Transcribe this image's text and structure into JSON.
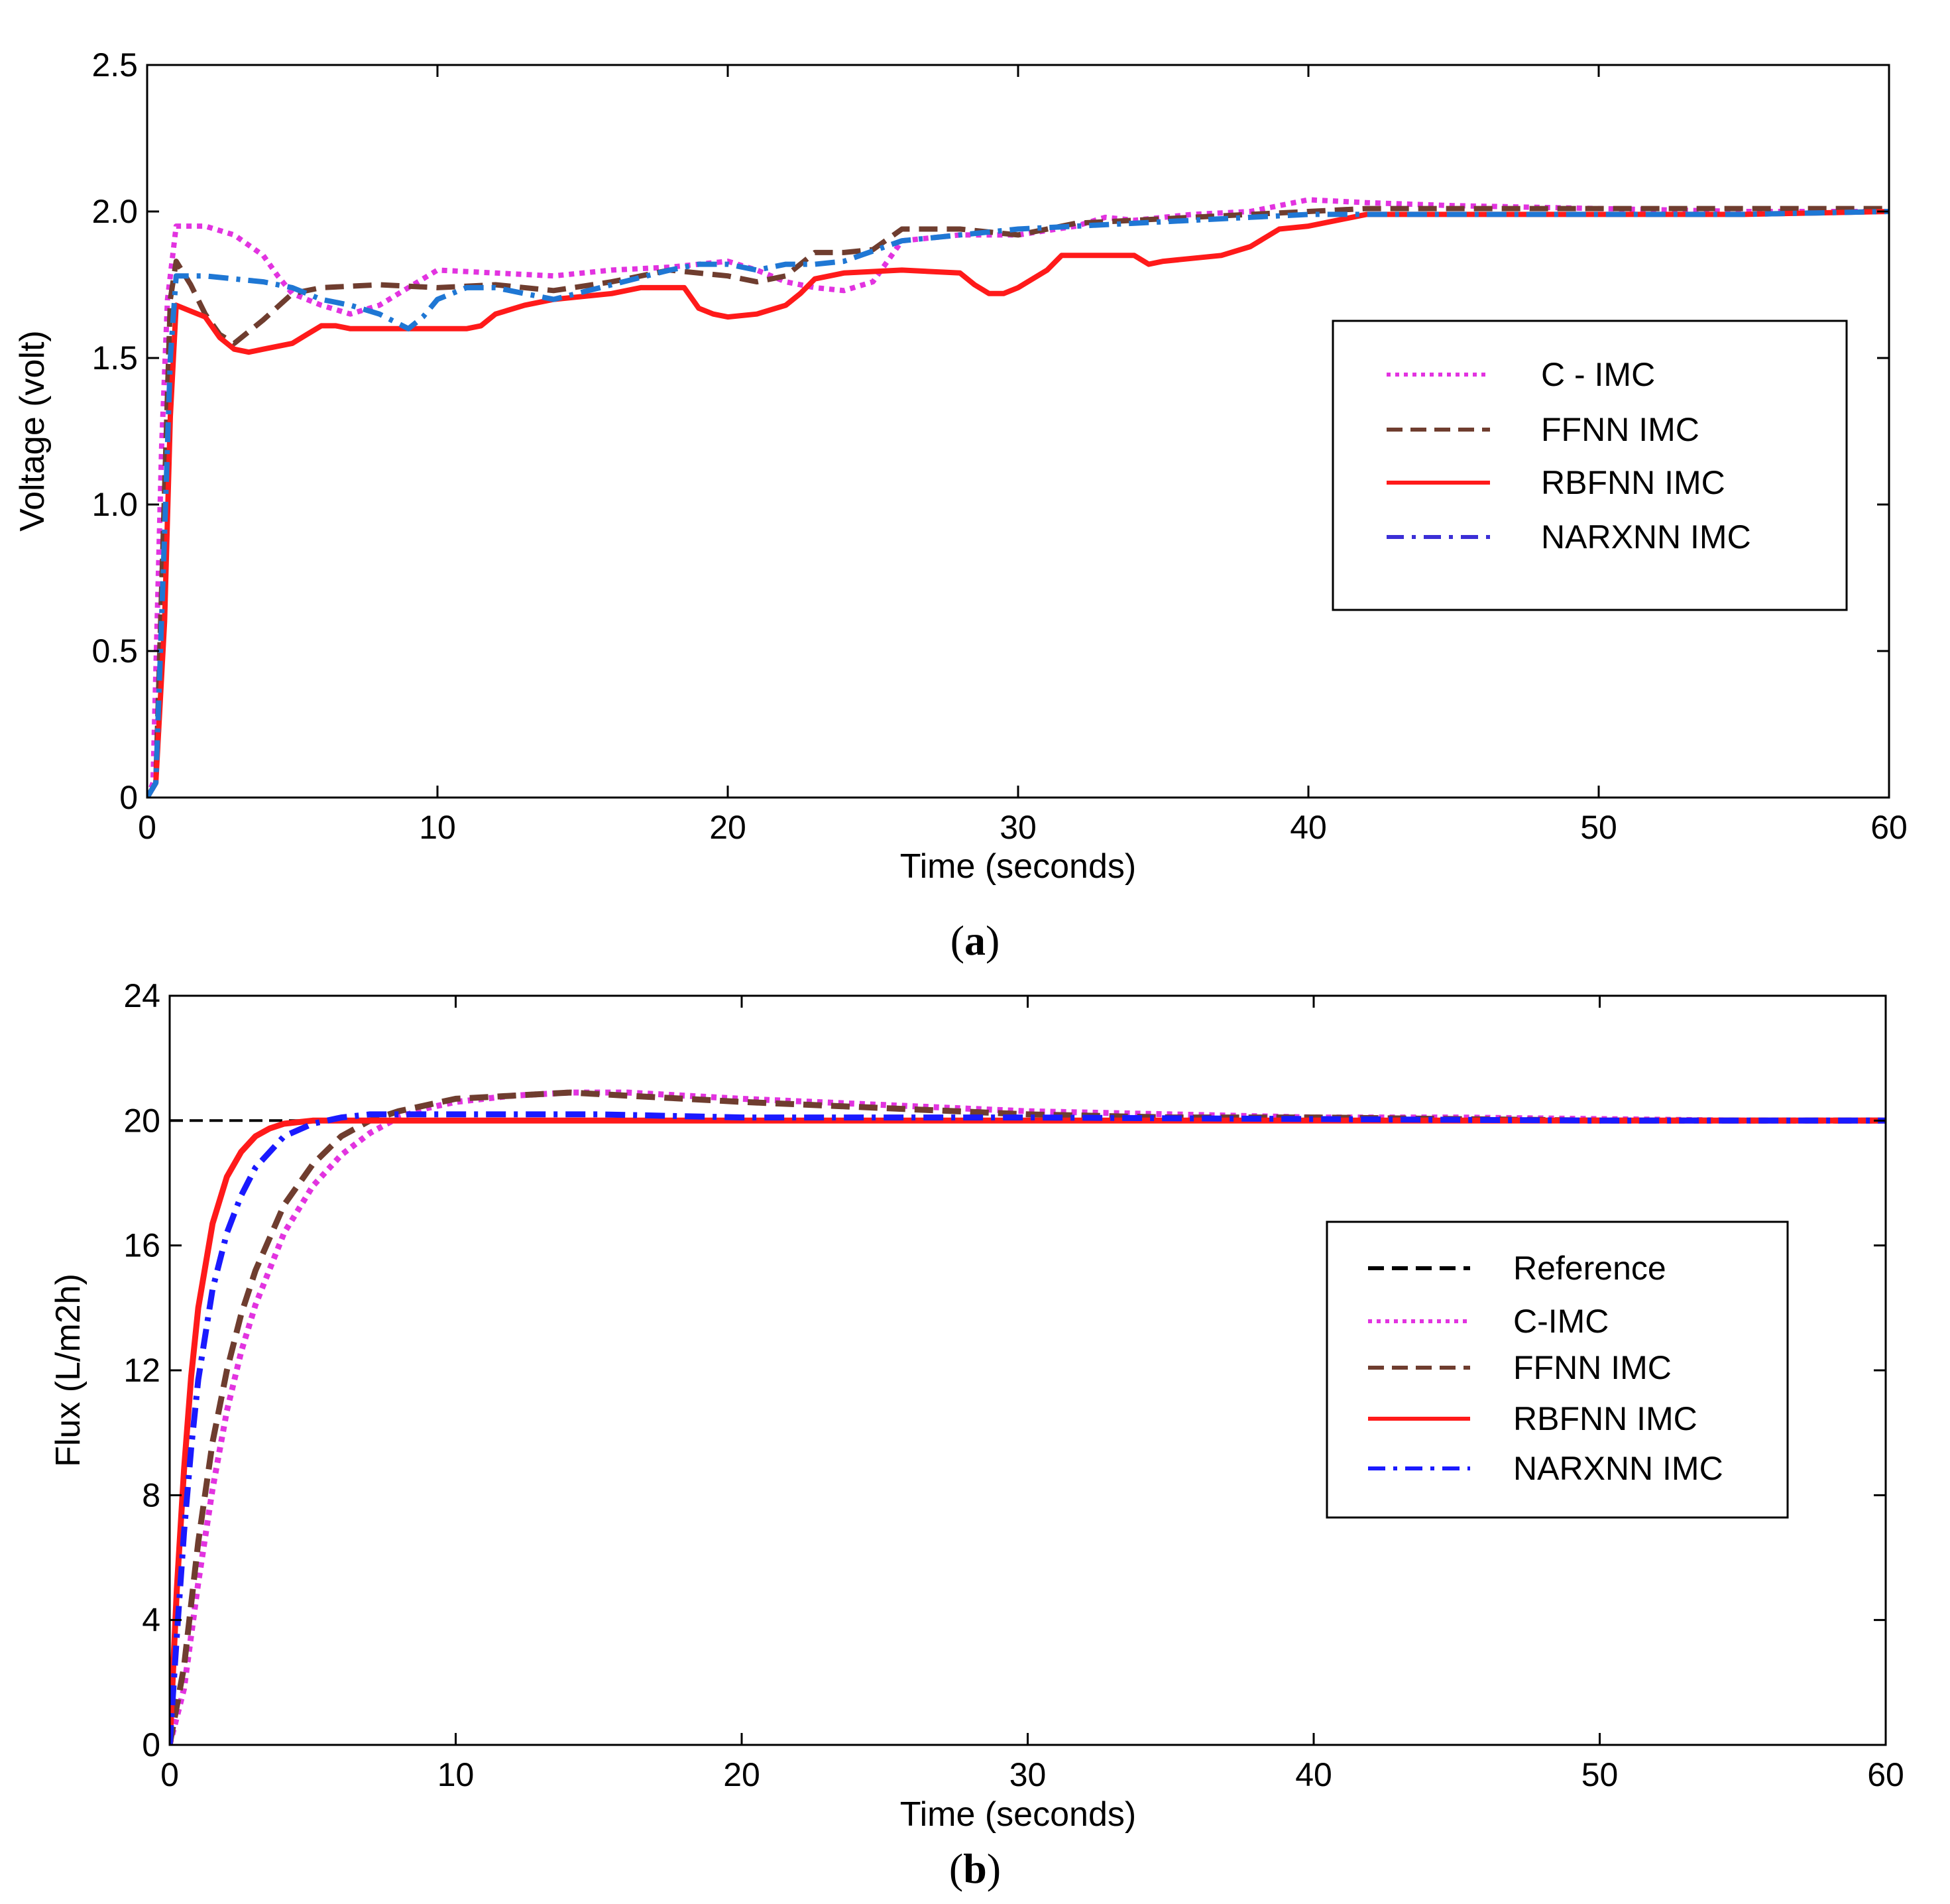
{
  "chart_data": [
    {
      "type": "line",
      "panel": "a",
      "caption_open": "(",
      "caption_letter": "a",
      "caption_close": ")",
      "xlabel": "Time (seconds)",
      "ylabel": "Voltage (volt)",
      "xlim": [
        0,
        60
      ],
      "ylim": [
        0,
        2.5
      ],
      "xticks": [
        0,
        10,
        20,
        30,
        40,
        50,
        60
      ],
      "xtick_labels": [
        "0",
        "10",
        "20",
        "30",
        "40",
        "50",
        "60"
      ],
      "yticks": [
        0,
        0.5,
        1.0,
        1.5,
        2.0,
        2.5
      ],
      "ytick_labels": [
        "0",
        "0.5",
        "1.0",
        "1.5",
        "2.0",
        "2.5"
      ],
      "grid": false,
      "legend_position": "right",
      "series": [
        {
          "name": "C - IMC",
          "color": "#e233e0",
          "style": "dotted",
          "x": [
            0,
            0.2,
            0.5,
            0.7,
            1.0,
            1.5,
            2.0,
            3.0,
            4.0,
            4.5,
            5.0,
            6.0,
            7.0,
            8.0,
            9.0,
            10.0,
            12.0,
            14.0,
            16.0,
            18.0,
            20.0,
            21.0,
            22.0,
            23.0,
            24.0,
            25.0,
            26.0,
            28.0,
            30.0,
            32.0,
            33.0,
            34.0,
            36.0,
            38.0,
            40.0,
            42.0,
            45.0,
            50.0,
            55.0,
            60.0
          ],
          "y": [
            0,
            0.05,
            1.2,
            1.7,
            1.95,
            1.95,
            1.95,
            1.92,
            1.85,
            1.78,
            1.72,
            1.68,
            1.65,
            1.68,
            1.74,
            1.8,
            1.79,
            1.78,
            1.8,
            1.81,
            1.83,
            1.8,
            1.76,
            1.74,
            1.73,
            1.76,
            1.9,
            1.92,
            1.92,
            1.95,
            1.98,
            1.97,
            1.99,
            2.0,
            2.04,
            2.03,
            2.02,
            2.01,
            2.0,
            2.0
          ]
        },
        {
          "name": "FFNN IMC",
          "color": "#6f3d2f",
          "style": "dashed",
          "x": [
            0,
            0.3,
            0.6,
            0.8,
            1.0,
            1.5,
            2.0,
            2.5,
            3.0,
            4.0,
            5.0,
            6.0,
            8.0,
            10.0,
            12.0,
            14.0,
            16.0,
            18.0,
            20.0,
            21.0,
            22.0,
            23.0,
            24.0,
            25.0,
            26.0,
            28.0,
            30.0,
            32.0,
            34.0,
            36.0,
            38.0,
            40.0,
            42.0,
            45.0,
            50.0,
            55.0,
            60.0
          ],
          "y": [
            0,
            0.05,
            1.05,
            1.7,
            1.83,
            1.75,
            1.65,
            1.58,
            1.55,
            1.63,
            1.72,
            1.74,
            1.75,
            1.74,
            1.75,
            1.73,
            1.76,
            1.8,
            1.78,
            1.76,
            1.78,
            1.86,
            1.86,
            1.87,
            1.94,
            1.94,
            1.92,
            1.96,
            1.97,
            1.98,
            1.99,
            2.0,
            2.01,
            2.01,
            2.01,
            2.01,
            2.01
          ]
        },
        {
          "name": "RBFNN IMC",
          "color": "#ff1a1a",
          "style": "solid",
          "x": [
            0,
            0.3,
            0.6,
            0.8,
            1.0,
            1.5,
            2.0,
            2.5,
            3.0,
            3.5,
            4.0,
            5.0,
            5.5,
            6.0,
            6.5,
            7.0,
            8.0,
            9.0,
            10.0,
            11.0,
            11.5,
            12.0,
            13.0,
            14.0,
            16.0,
            17.0,
            18.0,
            18.5,
            19.0,
            19.5,
            20.0,
            21.0,
            22.0,
            22.5,
            23.0,
            24.0,
            26.0,
            28.0,
            28.5,
            29.0,
            29.5,
            30.0,
            31.0,
            31.5,
            32.0,
            33.0,
            34.0,
            34.5,
            35.0,
            36.0,
            37.0,
            38.0,
            39.0,
            40.0,
            42.0,
            45.0,
            50.0,
            55.0,
            60.0
          ],
          "y": [
            0,
            0.05,
            0.6,
            1.3,
            1.68,
            1.66,
            1.64,
            1.57,
            1.53,
            1.52,
            1.53,
            1.55,
            1.58,
            1.61,
            1.61,
            1.6,
            1.6,
            1.6,
            1.6,
            1.6,
            1.61,
            1.65,
            1.68,
            1.7,
            1.72,
            1.74,
            1.74,
            1.74,
            1.67,
            1.65,
            1.64,
            1.65,
            1.68,
            1.72,
            1.77,
            1.79,
            1.8,
            1.79,
            1.75,
            1.72,
            1.72,
            1.74,
            1.8,
            1.85,
            1.85,
            1.85,
            1.85,
            1.82,
            1.83,
            1.84,
            1.85,
            1.88,
            1.94,
            1.95,
            1.99,
            1.99,
            1.99,
            1.99,
            2.0
          ]
        },
        {
          "name": "NARXNN IMC",
          "color": "#1f77d4",
          "legend_color": "#3b2fd6",
          "style": "dashdot",
          "x": [
            0,
            0.3,
            0.6,
            0.8,
            1.0,
            2.0,
            3.0,
            4.0,
            5.0,
            6.0,
            7.0,
            8.0,
            9.0,
            9.5,
            10.0,
            11.0,
            12.0,
            13.0,
            14.0,
            16.0,
            18.0,
            19.0,
            20.0,
            21.0,
            22.0,
            23.0,
            24.0,
            26.0,
            28.0,
            30.0,
            32.0,
            34.0,
            36.0,
            38.0,
            40.0,
            45.0,
            50.0,
            55.0,
            60.0
          ],
          "y": [
            0,
            0.05,
            0.9,
            1.5,
            1.78,
            1.78,
            1.77,
            1.76,
            1.74,
            1.7,
            1.68,
            1.65,
            1.6,
            1.64,
            1.7,
            1.74,
            1.74,
            1.72,
            1.7,
            1.75,
            1.8,
            1.82,
            1.82,
            1.8,
            1.82,
            1.82,
            1.83,
            1.9,
            1.92,
            1.94,
            1.95,
            1.96,
            1.97,
            1.98,
            1.99,
            1.99,
            1.99,
            1.99,
            2.0
          ]
        }
      ]
    },
    {
      "type": "line",
      "panel": "b",
      "caption_open": "(",
      "caption_letter": "b",
      "caption_close": ")",
      "xlabel": "Time (seconds)",
      "ylabel": "Flux (L/m2h)",
      "xlim": [
        0,
        60
      ],
      "ylim": [
        0,
        24
      ],
      "xticks": [
        0,
        10,
        20,
        30,
        40,
        50,
        60
      ],
      "xtick_labels": [
        "0",
        "10",
        "20",
        "30",
        "40",
        "50",
        "60"
      ],
      "yticks": [
        0,
        4,
        8,
        12,
        16,
        20,
        24
      ],
      "ytick_labels": [
        "0",
        "4",
        "8",
        "12",
        "16",
        "20",
        "24"
      ],
      "grid": false,
      "legend_position": "right",
      "series": [
        {
          "name": "Reference",
          "color": "#000000",
          "style": "dashed",
          "x": [
            0,
            60
          ],
          "y": [
            20,
            20
          ]
        },
        {
          "name": "C-IMC",
          "color": "#e233e0",
          "style": "dotted",
          "x": [
            0,
            0.5,
            1.0,
            1.5,
            2.0,
            2.5,
            3.0,
            4.0,
            5.0,
            6.0,
            7.0,
            8.0,
            9.0,
            10.0,
            12.0,
            14.0,
            16.0,
            18.0,
            20.0,
            25.0,
            30.0,
            35.0,
            40.0,
            45.0,
            50.0,
            55.0,
            60.0
          ],
          "y": [
            0,
            1.8,
            5.2,
            8.2,
            10.7,
            12.6,
            14.1,
            16.4,
            17.9,
            18.9,
            19.6,
            20.1,
            20.4,
            20.6,
            20.8,
            20.9,
            20.9,
            20.8,
            20.7,
            20.5,
            20.3,
            20.2,
            20.1,
            20.1,
            20.05,
            20.0,
            20.0
          ]
        },
        {
          "name": "FFNN IMC",
          "color": "#6f3d2f",
          "style": "dashed",
          "x": [
            0,
            0.5,
            1.0,
            1.5,
            2.0,
            2.5,
            3.0,
            4.0,
            5.0,
            6.0,
            7.0,
            8.0,
            10.0,
            12.0,
            14.0,
            16.0,
            18.0,
            20.0,
            25.0,
            30.0,
            35.0,
            40.0,
            45.0,
            50.0,
            55.0,
            60.0
          ],
          "y": [
            0,
            2.5,
            6.5,
            9.7,
            12.0,
            13.8,
            15.2,
            17.3,
            18.6,
            19.5,
            20.0,
            20.3,
            20.7,
            20.8,
            20.9,
            20.8,
            20.7,
            20.6,
            20.4,
            20.2,
            20.1,
            20.1,
            20.05,
            20.0,
            20.0,
            20.0
          ]
        },
        {
          "name": "RBFNN IMC",
          "color": "#ff1a1a",
          "style": "solid",
          "x": [
            0,
            0.25,
            0.5,
            0.75,
            1.0,
            1.5,
            2.0,
            2.5,
            3.0,
            3.5,
            4.0,
            5.0,
            6.0,
            8.0,
            10.0,
            20.0,
            30.0,
            40.0,
            50.0,
            60.0
          ],
          "y": [
            0,
            5.0,
            8.8,
            11.8,
            14.0,
            16.7,
            18.2,
            19.0,
            19.5,
            19.75,
            19.9,
            20.0,
            20.0,
            20.0,
            20.0,
            20.0,
            20.0,
            20.0,
            20.0,
            20.0
          ]
        },
        {
          "name": "NARXNN IMC",
          "color": "#1a1aff",
          "style": "dashdot",
          "x": [
            0,
            0.25,
            0.5,
            0.75,
            1.0,
            1.5,
            2.0,
            2.5,
            3.0,
            4.0,
            5.0,
            6.0,
            7.0,
            8.0,
            10.0,
            15.0,
            20.0,
            30.0,
            40.0,
            50.0,
            60.0
          ],
          "y": [
            0,
            3.5,
            6.8,
            9.5,
            11.7,
            14.6,
            16.4,
            17.6,
            18.5,
            19.5,
            19.9,
            20.1,
            20.2,
            20.2,
            20.2,
            20.2,
            20.1,
            20.1,
            20.05,
            20.0,
            20.0
          ]
        }
      ]
    }
  ]
}
